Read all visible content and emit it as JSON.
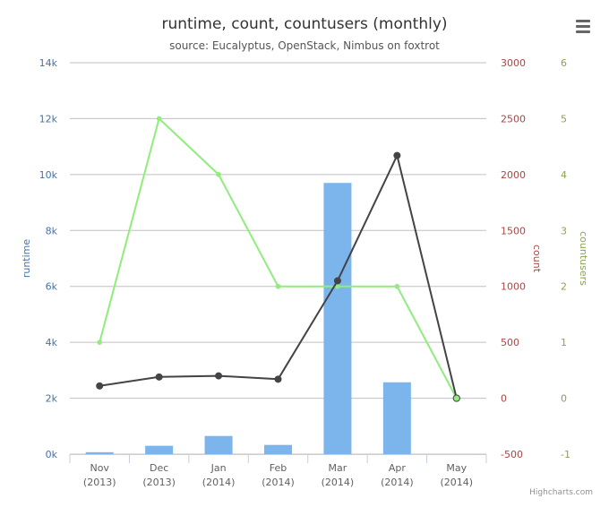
{
  "chart_data": {
    "type": "bar+line",
    "title": "runtime, count, countusers (monthly)",
    "subtitle": "source: Eucalyptus, OpenStack, Nimbus on foxtrot",
    "credits": "Highcharts.com",
    "categories": [
      {
        "month": "Nov",
        "year": "(2013)"
      },
      {
        "month": "Dec",
        "year": "(2013)"
      },
      {
        "month": "Jan",
        "year": "(2014)"
      },
      {
        "month": "Feb",
        "year": "(2014)"
      },
      {
        "month": "Mar",
        "year": "(2014)"
      },
      {
        "month": "Apr",
        "year": "(2014)"
      },
      {
        "month": "May",
        "year": "(2014)"
      }
    ],
    "axes": {
      "runtime": {
        "label": "runtime",
        "min": 0,
        "max": 14000,
        "ticks": [
          "0k",
          "2k",
          "4k",
          "6k",
          "8k",
          "10k",
          "12k",
          "14k"
        ],
        "tick_values": [
          0,
          2000,
          4000,
          6000,
          8000,
          10000,
          12000,
          14000
        ],
        "color": "#4572A7"
      },
      "count": {
        "label": "count",
        "min": -500,
        "max": 3000,
        "ticks": [
          "-500",
          "0",
          "500",
          "1000",
          "1500",
          "2000",
          "2500",
          "3000"
        ],
        "tick_values": [
          -500,
          0,
          500,
          1000,
          1500,
          2000,
          2500,
          3000
        ],
        "color": "#AA4643"
      },
      "countusers": {
        "label": "countusers",
        "min": -1,
        "max": 6,
        "ticks": [
          "-1",
          "0",
          "1",
          "2",
          "3",
          "4",
          "5",
          "6"
        ],
        "tick_values": [
          -1,
          0,
          1,
          2,
          3,
          4,
          5,
          6
        ],
        "color": "#89A54E"
      }
    },
    "series": [
      {
        "name": "runtime",
        "type": "bar",
        "axis": "runtime",
        "color": "#7CB5EC",
        "values": [
          70,
          300,
          650,
          330,
          9700,
          2570,
          0
        ]
      },
      {
        "name": "countusers",
        "type": "line",
        "axis": "countusers",
        "color": "#90ED7D",
        "values": [
          1,
          5,
          4,
          2,
          2,
          2,
          0
        ]
      },
      {
        "name": "count",
        "type": "line",
        "axis": "count",
        "color": "#434348",
        "values": [
          110,
          190,
          200,
          170,
          1050,
          2170,
          0
        ]
      }
    ],
    "grid": true,
    "legend": "none"
  },
  "menu": {
    "icon": "menu-icon"
  }
}
